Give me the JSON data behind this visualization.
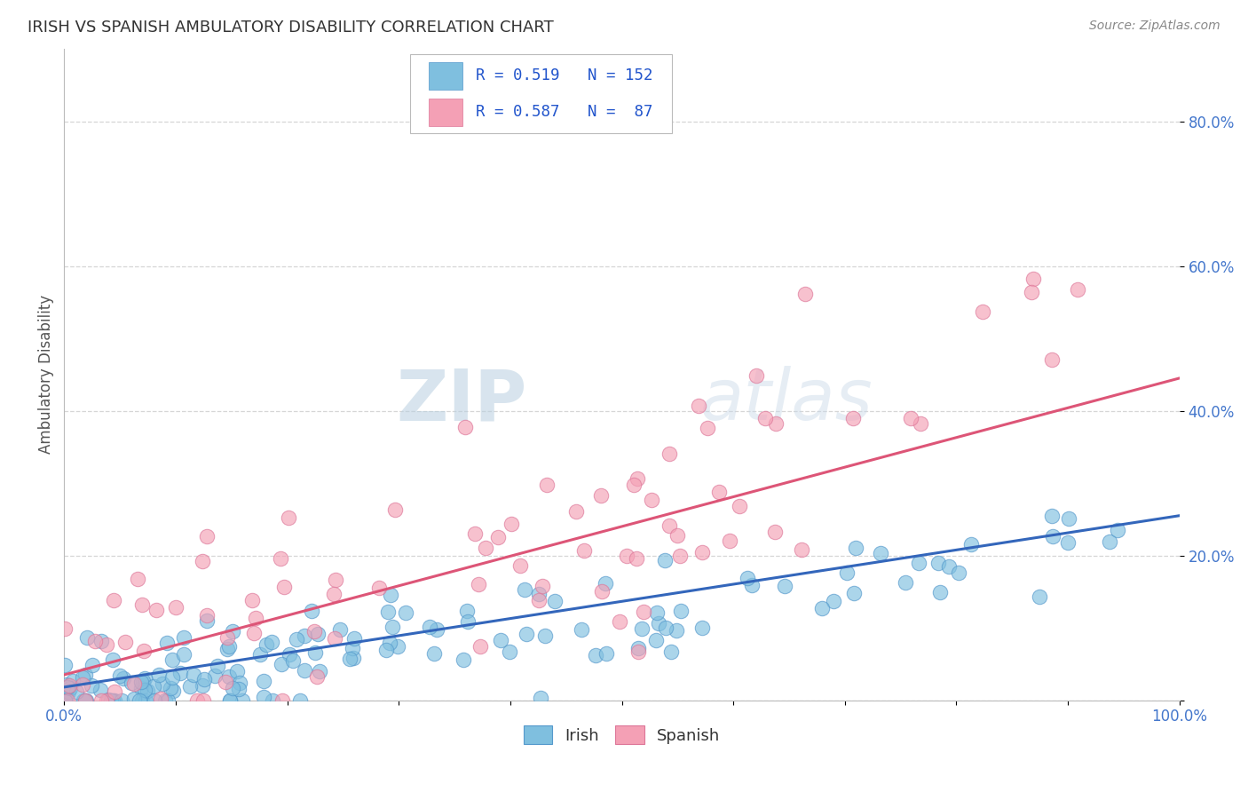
{
  "title": "IRISH VS SPANISH AMBULATORY DISABILITY CORRELATION CHART",
  "source": "Source: ZipAtlas.com",
  "ylabel": "Ambulatory Disability",
  "irish_R": 0.519,
  "irish_N": 152,
  "spanish_R": 0.587,
  "spanish_N": 87,
  "irish_color": "#7fbfdf",
  "irish_edge_color": "#5599cc",
  "spanish_color": "#f4a0b5",
  "spanish_edge_color": "#dd7799",
  "irish_line_color": "#3366bb",
  "spanish_line_color": "#dd5577",
  "bg_color": "#ffffff",
  "legend_color": "#2255cc",
  "watermark_color": "#d8e8f0",
  "title_color": "#333333",
  "source_color": "#888888",
  "ylabel_color": "#555555",
  "tick_color": "#4477cc",
  "grid_color": "#cccccc"
}
